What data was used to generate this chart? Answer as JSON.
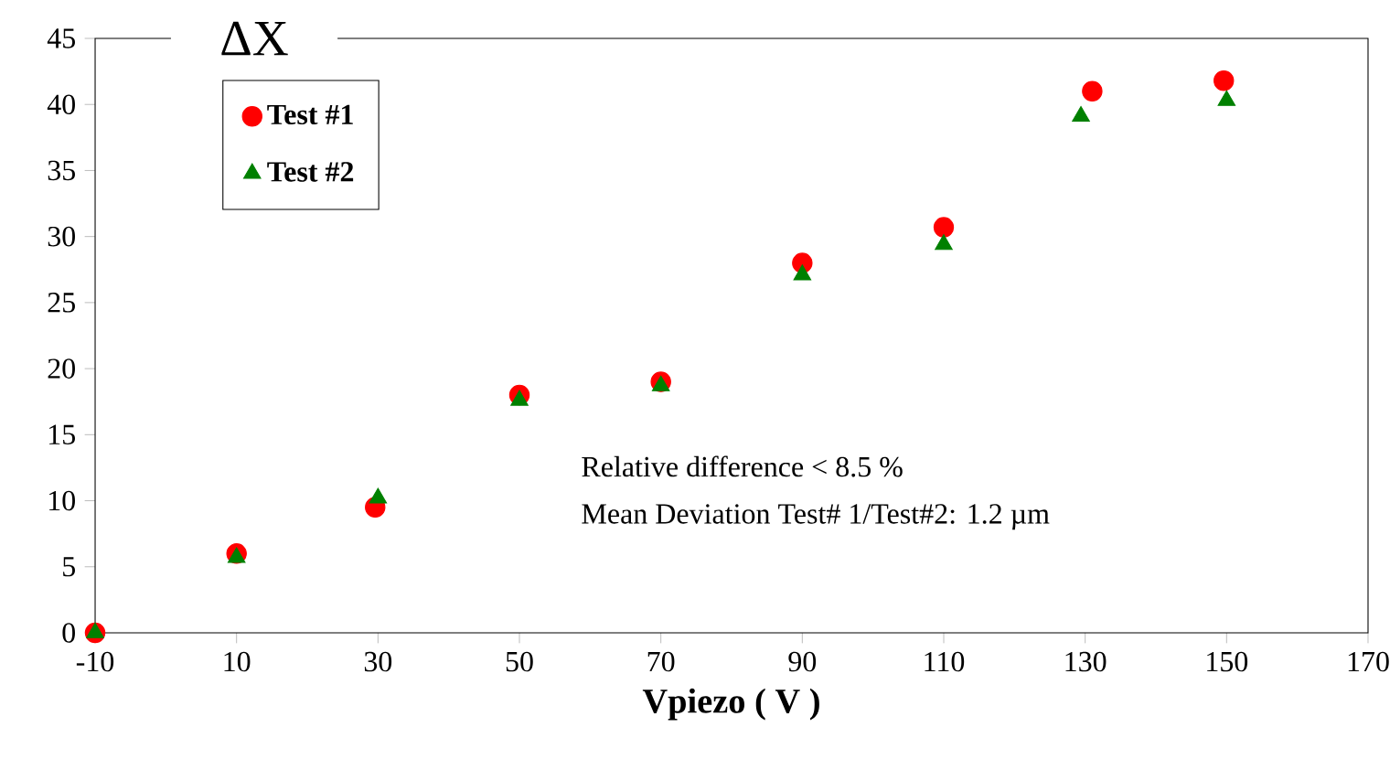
{
  "chart_data": {
    "type": "scatter",
    "ylabel": "ΔX",
    "xlabel": "Vpiezo ( V )",
    "series": [
      {
        "name": "Test #1",
        "color": "#ff0000",
        "marker": "circle",
        "x": [
          -10,
          10,
          29.6,
          50,
          70,
          90,
          110,
          131,
          149.6
        ],
        "values": [
          0,
          6,
          9.5,
          18,
          19,
          28,
          30.7,
          41,
          41.8
        ]
      },
      {
        "name": "Test #2",
        "color": "#008000",
        "marker": "triangle",
        "x": [
          -10,
          10,
          30,
          50,
          70,
          90,
          110,
          129.4,
          150
        ],
        "values": [
          0,
          5.7,
          10.2,
          17.6,
          18.7,
          27.1,
          29.4,
          39.1,
          40.3
        ]
      }
    ],
    "xlim": [
      -10,
      170
    ],
    "xticks": [
      -10,
      10,
      30,
      50,
      70,
      90,
      110,
      130,
      150,
      170
    ],
    "ylim": [
      0,
      45
    ],
    "yticks": [
      0,
      5,
      10,
      15,
      20,
      25,
      30,
      35,
      40,
      45
    ],
    "legend": "top left",
    "grid": false,
    "annotations": [
      "Relative difference < 8.5 %",
      "Mean Deviation Test# 1/Test#2: 1.2 µm"
    ]
  }
}
